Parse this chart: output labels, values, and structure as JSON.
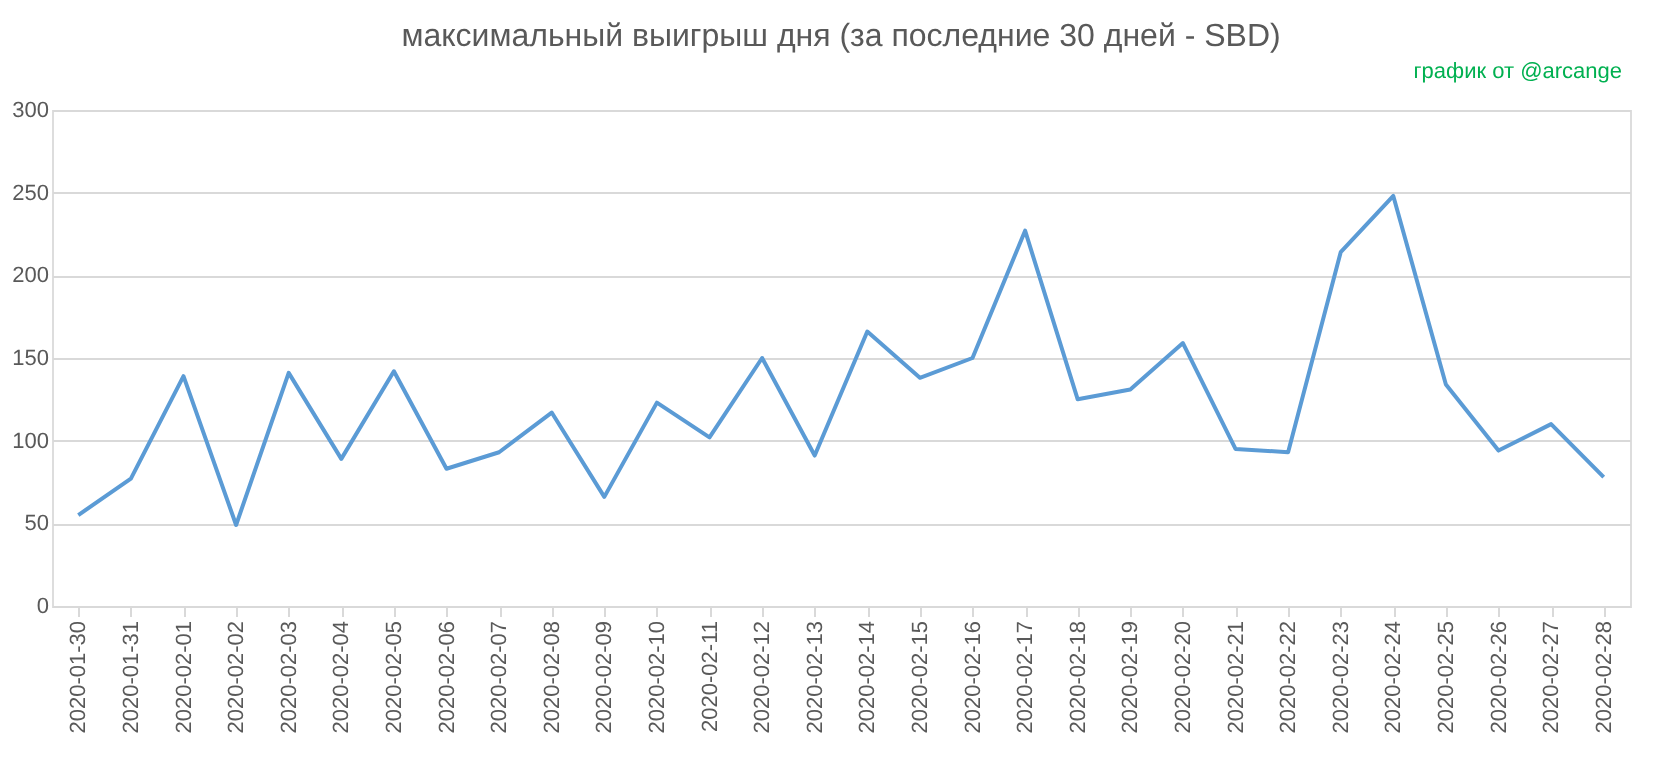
{
  "chart_data": {
    "type": "line",
    "title": "максимальный выигрыш дня (за последние 30 дней - SBD)",
    "annotations": [
      "график от @arcange"
    ],
    "categories": [
      "2020-01-30",
      "2020-01-31",
      "2020-02-01",
      "2020-02-02",
      "2020-02-03",
      "2020-02-04",
      "2020-02-05",
      "2020-02-06",
      "2020-02-07",
      "2020-02-08",
      "2020-02-09",
      "2020-02-10",
      "2020-02-11",
      "2020-02-12",
      "2020-02-13",
      "2020-02-14",
      "2020-02-15",
      "2020-02-16",
      "2020-02-17",
      "2020-02-18",
      "2020-02-19",
      "2020-02-20",
      "2020-02-21",
      "2020-02-22",
      "2020-02-23",
      "2020-02-24",
      "2020-02-25",
      "2020-02-26",
      "2020-02-27",
      "2020-02-28"
    ],
    "series": [
      {
        "color": "#5b9bd5",
        "values": [
          55,
          77,
          139,
          49,
          141,
          89,
          142,
          83,
          93,
          117,
          66,
          123,
          102,
          150,
          91,
          166,
          138,
          150,
          227,
          125,
          131,
          159,
          95,
          93,
          214,
          248,
          134,
          94,
          110,
          78
        ]
      }
    ],
    "ylim": [
      0,
      300
    ],
    "yticks": [
      0,
      50,
      100,
      150,
      200,
      250,
      300
    ],
    "grid": "y",
    "marker": "none",
    "line_style": "solid"
  }
}
